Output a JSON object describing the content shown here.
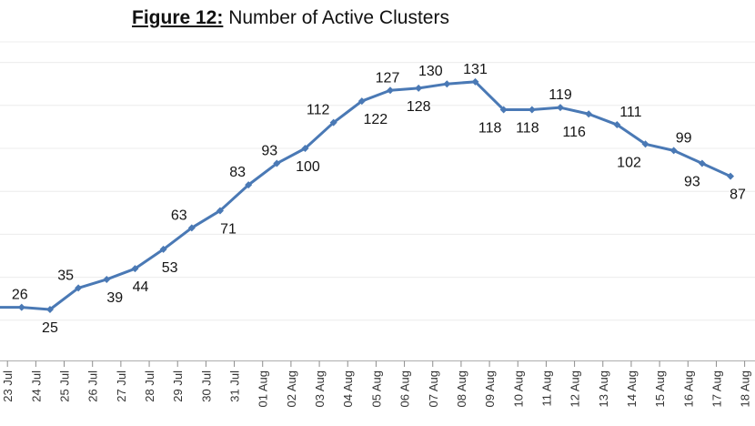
{
  "header": {
    "figure_label": "Figure 12:",
    "title": "Number of Active Clusters"
  },
  "chart_data": {
    "type": "line",
    "title": "Figure 12: Number of Active Clusters",
    "series_name": "Number of Active Clusters",
    "x_labels": [
      "23 Jul",
      "24 Jul",
      "25 Jul",
      "26 Jul",
      "27 Jul",
      "28 Jul",
      "29 Jul",
      "30 Jul",
      "31 Jul",
      "01 Aug",
      "02 Aug",
      "03 Aug",
      "04 Aug",
      "05 Aug",
      "06 Aug",
      "07 Aug",
      "08 Aug",
      "09 Aug",
      "10 Aug",
      "11 Aug",
      "12 Aug",
      "13 Aug",
      "14 Aug",
      "15 Aug",
      "16 Aug",
      "17 Aug",
      "18 Aug"
    ],
    "points": [
      {
        "date": "24 Jul",
        "value": 26,
        "label_position": "above",
        "label_dx": -2
      },
      {
        "date": "25 Jul",
        "value": 25,
        "label_position": "below",
        "label_dx": 0
      },
      {
        "date": "26 Jul",
        "value": 35,
        "label_position": "above",
        "label_dx": -14
      },
      {
        "date": "27 Jul",
        "value": 39,
        "label_position": "below",
        "label_dx": 9
      },
      {
        "date": "28 Jul",
        "value": 44,
        "label_position": "below",
        "label_dx": 6
      },
      {
        "date": "29 Jul",
        "value": 53,
        "label_position": "below",
        "label_dx": 7
      },
      {
        "date": "30 Jul",
        "value": 63,
        "label_position": "above",
        "label_dx": -14
      },
      {
        "date": "31 Jul",
        "value": 71,
        "label_position": "below",
        "label_dx": 9
      },
      {
        "date": "01 Aug",
        "value": 83,
        "label_position": "above",
        "label_dx": -12
      },
      {
        "date": "02 Aug",
        "value": 93,
        "label_position": "above",
        "label_dx": -8
      },
      {
        "date": "03 Aug",
        "value": 100,
        "label_position": "below",
        "label_dx": 3
      },
      {
        "date": "04 Aug",
        "value": 112,
        "label_position": "above",
        "label_dx": -17
      },
      {
        "date": "05 Aug",
        "value": 122,
        "label_position": "below",
        "label_dx": 15
      },
      {
        "date": "06 Aug",
        "value": 127,
        "label_position": "above",
        "label_dx": -3
      },
      {
        "date": "07 Aug",
        "value": 128,
        "label_position": "below",
        "label_dx": 0
      },
      {
        "date": "08 Aug",
        "value": 130,
        "label_position": "above",
        "label_dx": -18
      },
      {
        "date": "09 Aug",
        "value": 131,
        "label_position": "above",
        "label_dx": 0
      },
      {
        "date": "10 Aug",
        "value": 118,
        "label_position": "below",
        "label_dx": -15
      },
      {
        "date": "11 Aug",
        "value": 118,
        "label_position": "below",
        "label_dx": -5
      },
      {
        "date": "12 Aug",
        "value": 119,
        "label_position": "above",
        "label_dx": 0
      },
      {
        "date": "13 Aug",
        "value": 116,
        "label_position": "below",
        "label_dx": -16
      },
      {
        "date": "14 Aug",
        "value": 111,
        "label_position": "above",
        "label_dx": 15
      },
      {
        "date": "15 Aug",
        "value": 102,
        "label_position": "below",
        "label_dx": -18
      },
      {
        "date": "16 Aug",
        "value": 99,
        "label_position": "above",
        "label_dx": 11
      },
      {
        "date": "17 Aug",
        "value": 93,
        "label_position": "below",
        "label_dx": -11
      },
      {
        "date": "18 Aug",
        "value": 87,
        "label_position": "below",
        "label_dx": 8
      }
    ],
    "y_axis": {
      "min": 0,
      "implied_max": 148,
      "gridline_interval": 20,
      "tick_labels_visible": false
    },
    "layout": {
      "grid": "horizontal",
      "legend": "none",
      "x_labels_rotated_degrees": 90,
      "points_offset_half_step_left_of_tick_labels": true,
      "line_enters_from_left_edge": true,
      "data_labels_visible": true
    },
    "colors": {
      "line": "#4a79b5",
      "marker": "#4a79b5",
      "data_label": "#141414",
      "axis_label": "#333333",
      "gridline": "#ececec",
      "axis_line": "#aeaeae",
      "tick": "#8c8c8c"
    }
  }
}
